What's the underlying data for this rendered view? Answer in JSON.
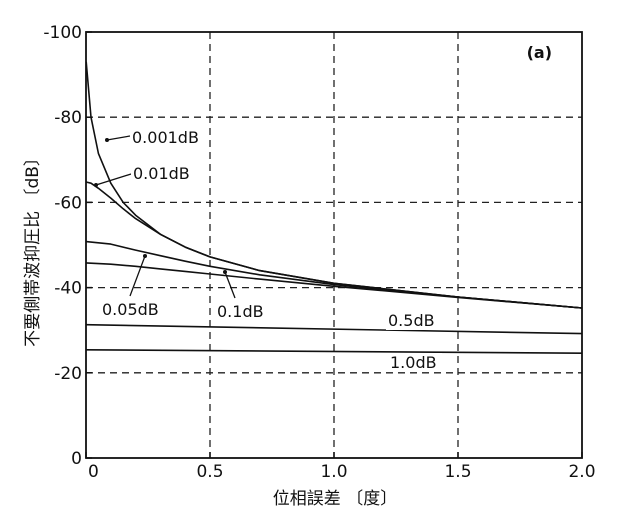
{
  "chart_data": {
    "type": "line",
    "panel_label": "(a)",
    "xlabel": "位相誤差 〔度〕",
    "ylabel": "不要側帯波抑圧比 〔dB〕",
    "xlim": [
      0,
      2.0
    ],
    "ylim": [
      0,
      100
    ],
    "xticks": [
      {
        "value": 0,
        "label": "0"
      },
      {
        "value": 0.5,
        "label": "0.5"
      },
      {
        "value": 1.0,
        "label": "1.0"
      },
      {
        "value": 1.5,
        "label": "1.5"
      },
      {
        "value": 2.0,
        "label": "2.0"
      }
    ],
    "yticks": [
      {
        "value": 0,
        "label": "0"
      },
      {
        "value": 20,
        "label": "-20"
      },
      {
        "value": 40,
        "label": "-40"
      },
      {
        "value": 60,
        "label": "-60"
      },
      {
        "value": 80,
        "label": "-80"
      },
      {
        "value": 100,
        "label": "-100"
      }
    ],
    "grid": true,
    "series": [
      {
        "name": "0.001dB",
        "x": [
          0.001,
          0.02,
          0.05,
          0.1,
          0.15,
          0.2,
          0.3,
          0.4,
          0.5,
          0.7,
          1.0,
          1.5,
          2.0
        ],
        "y": [
          93,
          80,
          71.5,
          64.5,
          60,
          57,
          52.5,
          49.5,
          47.2,
          44,
          41,
          37.8,
          35.2
        ]
      },
      {
        "name": "0.01dB",
        "x": [
          0,
          0.02,
          0.05,
          0.1,
          0.15,
          0.2,
          0.3,
          0.4,
          0.5,
          0.7,
          1.0,
          1.5,
          2.0
        ],
        "y": [
          64.8,
          64.5,
          63.3,
          61,
          58.5,
          56.2,
          52.5,
          49.5,
          47.2,
          44,
          41,
          37.8,
          35.2
        ]
      },
      {
        "name": "0.05dB",
        "x": [
          0,
          0.1,
          0.2,
          0.3,
          0.4,
          0.5,
          0.7,
          1.0,
          1.5,
          2.0
        ],
        "y": [
          50.8,
          50.2,
          48.8,
          47.5,
          46.2,
          45,
          43,
          40.7,
          37.8,
          35.2
        ]
      },
      {
        "name": "0.1dB",
        "x": [
          0,
          0.1,
          0.2,
          0.3,
          0.4,
          0.5,
          0.7,
          1.0,
          1.5,
          2.0
        ],
        "y": [
          45.8,
          45.5,
          45,
          44.4,
          43.8,
          43.2,
          42,
          40.3,
          37.7,
          35.2
        ]
      },
      {
        "name": "0.5dB",
        "x": [
          0,
          2.0
        ],
        "y": [
          31.3,
          29.2
        ]
      },
      {
        "name": "1.0dB",
        "x": [
          0,
          2.0
        ],
        "y": [
          25.4,
          24.6
        ]
      }
    ],
    "annotations": [
      {
        "text": "0.001dB",
        "series": "0.001dB"
      },
      {
        "text": "0.01dB",
        "series": "0.01dB"
      },
      {
        "text": "0.05dB",
        "series": "0.05dB"
      },
      {
        "text": "0.1dB",
        "series": "0.1dB"
      },
      {
        "text": "0.5dB",
        "series": "0.5dB"
      },
      {
        "text": "1.0dB",
        "series": "1.0dB"
      }
    ]
  }
}
